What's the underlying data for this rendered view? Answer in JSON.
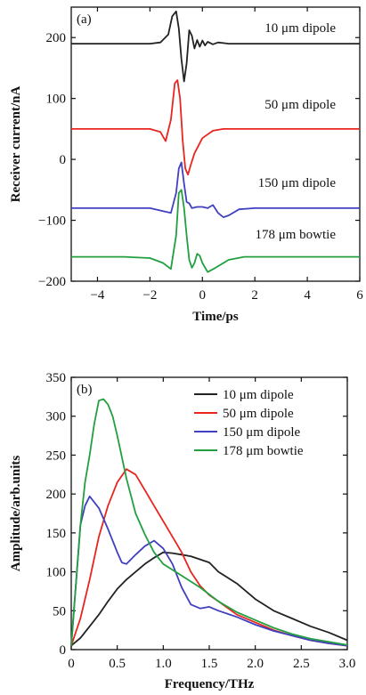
{
  "chart_data": [
    {
      "panel": "a",
      "panel_label": "(a)",
      "type": "line",
      "xlabel": "Time/ps",
      "ylabel": "Receiver current/nA",
      "xlim": [
        -5,
        6
      ],
      "ylim": [
        -200,
        250
      ],
      "xticks": [
        -4,
        -2,
        0,
        2,
        4,
        6
      ],
      "yticks": [
        -200,
        -100,
        0,
        100,
        200
      ],
      "xtick_labels": [
        "−4",
        "−2",
        "0",
        "2",
        "4",
        "6"
      ],
      "ytick_labels": [
        "−200",
        "−100",
        "0",
        "100",
        "200"
      ],
      "series": [
        {
          "name": "10 μm  dipole",
          "color": "#222222",
          "baseline": 190,
          "x": [
            -5,
            -2,
            -1.6,
            -1.3,
            -1.15,
            -1.0,
            -0.9,
            -0.8,
            -0.7,
            -0.6,
            -0.5,
            -0.4,
            -0.3,
            -0.2,
            -0.1,
            0,
            0.1,
            0.2,
            0.4,
            0.6,
            1.0,
            6
          ],
          "y": [
            190,
            190,
            192,
            205,
            235,
            243,
            215,
            165,
            128,
            158,
            212,
            203,
            182,
            196,
            185,
            195,
            187,
            193,
            189,
            192,
            190,
            190
          ]
        },
        {
          "name": "50 μm  dipole",
          "color": "#e8251e",
          "baseline": 50,
          "x": [
            -5,
            -2,
            -1.6,
            -1.4,
            -1.2,
            -1.05,
            -0.95,
            -0.85,
            -0.75,
            -0.65,
            -0.55,
            -0.45,
            -0.3,
            0,
            0.4,
            0.8,
            1.5,
            6
          ],
          "y": [
            50,
            50,
            45,
            30,
            65,
            125,
            130,
            100,
            30,
            -15,
            -25,
            -10,
            10,
            35,
            47,
            50,
            50,
            50
          ]
        },
        {
          "name": "150 μm  dipole",
          "color": "#4040c0",
          "baseline": -80,
          "x": [
            -5,
            -2,
            -1.5,
            -1.2,
            -1.0,
            -0.9,
            -0.8,
            -0.7,
            -0.6,
            -0.5,
            -0.4,
            -0.2,
            0,
            0.2,
            0.4,
            0.6,
            0.8,
            1.0,
            1.4,
            2.0,
            6
          ],
          "y": [
            -80,
            -80,
            -85,
            -88,
            -55,
            -15,
            -5,
            -40,
            -70,
            -72,
            -80,
            -78,
            -78,
            -80,
            -75,
            -88,
            -95,
            -92,
            -82,
            -80,
            -80
          ]
        },
        {
          "name": "178 μm  bowtie",
          "color": "#22a040",
          "baseline": -160,
          "x": [
            -5,
            -3,
            -2,
            -1.5,
            -1.2,
            -1.0,
            -0.9,
            -0.8,
            -0.7,
            -0.6,
            -0.5,
            -0.4,
            -0.3,
            -0.2,
            -0.1,
            0,
            0.2,
            0.5,
            1.0,
            1.6,
            2.0,
            3,
            6
          ],
          "y": [
            -160,
            -160,
            -162,
            -170,
            -180,
            -125,
            -55,
            -50,
            -80,
            -125,
            -165,
            -178,
            -170,
            -155,
            -158,
            -170,
            -185,
            -178,
            -165,
            -160,
            -160,
            -160,
            -160
          ]
        }
      ]
    },
    {
      "panel": "b",
      "panel_label": "(b)",
      "type": "line",
      "xlabel": "Frequency/THz",
      "ylabel": "Amplitude/arb.units",
      "xlim": [
        0,
        3.0
      ],
      "ylim": [
        0,
        350
      ],
      "xticks": [
        0,
        0.5,
        1.0,
        1.5,
        2.0,
        2.5,
        3.0
      ],
      "yticks": [
        0,
        50,
        100,
        150,
        200,
        250,
        300,
        350
      ],
      "xtick_labels": [
        "0",
        "0.5",
        "1.0",
        "1.5",
        "2.0",
        "2.5",
        "3.0"
      ],
      "ytick_labels": [
        "0",
        "50",
        "100",
        "150",
        "200",
        "250",
        "300",
        "350"
      ],
      "legend": "top-right",
      "series": [
        {
          "name": "10 μm  dipole",
          "color": "#222222",
          "x": [
            0,
            0.1,
            0.2,
            0.3,
            0.4,
            0.5,
            0.6,
            0.7,
            0.8,
            0.9,
            1.0,
            1.1,
            1.2,
            1.3,
            1.4,
            1.5,
            1.6,
            1.8,
            2.0,
            2.2,
            2.4,
            2.6,
            2.8,
            3.0
          ],
          "y": [
            5,
            15,
            30,
            45,
            62,
            78,
            90,
            100,
            110,
            118,
            125,
            124,
            122,
            120,
            116,
            112,
            100,
            85,
            65,
            50,
            40,
            30,
            22,
            12
          ]
        },
        {
          "name": "50 μm  dipole",
          "color": "#e8251e",
          "x": [
            0,
            0.1,
            0.2,
            0.3,
            0.4,
            0.5,
            0.6,
            0.7,
            0.8,
            0.9,
            1.0,
            1.1,
            1.2,
            1.3,
            1.4,
            1.5,
            1.6,
            1.8,
            2.0,
            2.2,
            2.4,
            2.6,
            2.8,
            3.0
          ],
          "y": [
            5,
            40,
            90,
            145,
            185,
            215,
            232,
            225,
            205,
            185,
            165,
            145,
            125,
            100,
            82,
            70,
            62,
            45,
            35,
            25,
            18,
            12,
            8,
            5
          ]
        },
        {
          "name": "150 μm  dipole",
          "color": "#4040c0",
          "x": [
            0,
            0.1,
            0.15,
            0.2,
            0.3,
            0.4,
            0.5,
            0.55,
            0.6,
            0.7,
            0.8,
            0.9,
            1.0,
            1.1,
            1.2,
            1.3,
            1.4,
            1.5,
            1.6,
            1.8,
            2.0,
            2.2,
            2.4,
            2.6,
            2.8,
            3.0
          ],
          "y": [
            5,
            160,
            185,
            197,
            182,
            155,
            125,
            112,
            110,
            122,
            133,
            140,
            130,
            110,
            80,
            58,
            53,
            55,
            50,
            42,
            32,
            24,
            18,
            12,
            8,
            5
          ]
        },
        {
          "name": "178 μm  bowtie",
          "color": "#22a040",
          "x": [
            0,
            0.1,
            0.15,
            0.2,
            0.25,
            0.3,
            0.35,
            0.4,
            0.45,
            0.5,
            0.6,
            0.7,
            0.8,
            0.9,
            1.0,
            1.2,
            1.4,
            1.6,
            1.8,
            2.0,
            2.2,
            2.4,
            2.6,
            2.8,
            3.0
          ],
          "y": [
            5,
            160,
            215,
            250,
            290,
            320,
            322,
            315,
            300,
            275,
            220,
            175,
            148,
            125,
            110,
            95,
            80,
            62,
            48,
            38,
            28,
            20,
            14,
            10,
            6
          ]
        }
      ]
    }
  ]
}
